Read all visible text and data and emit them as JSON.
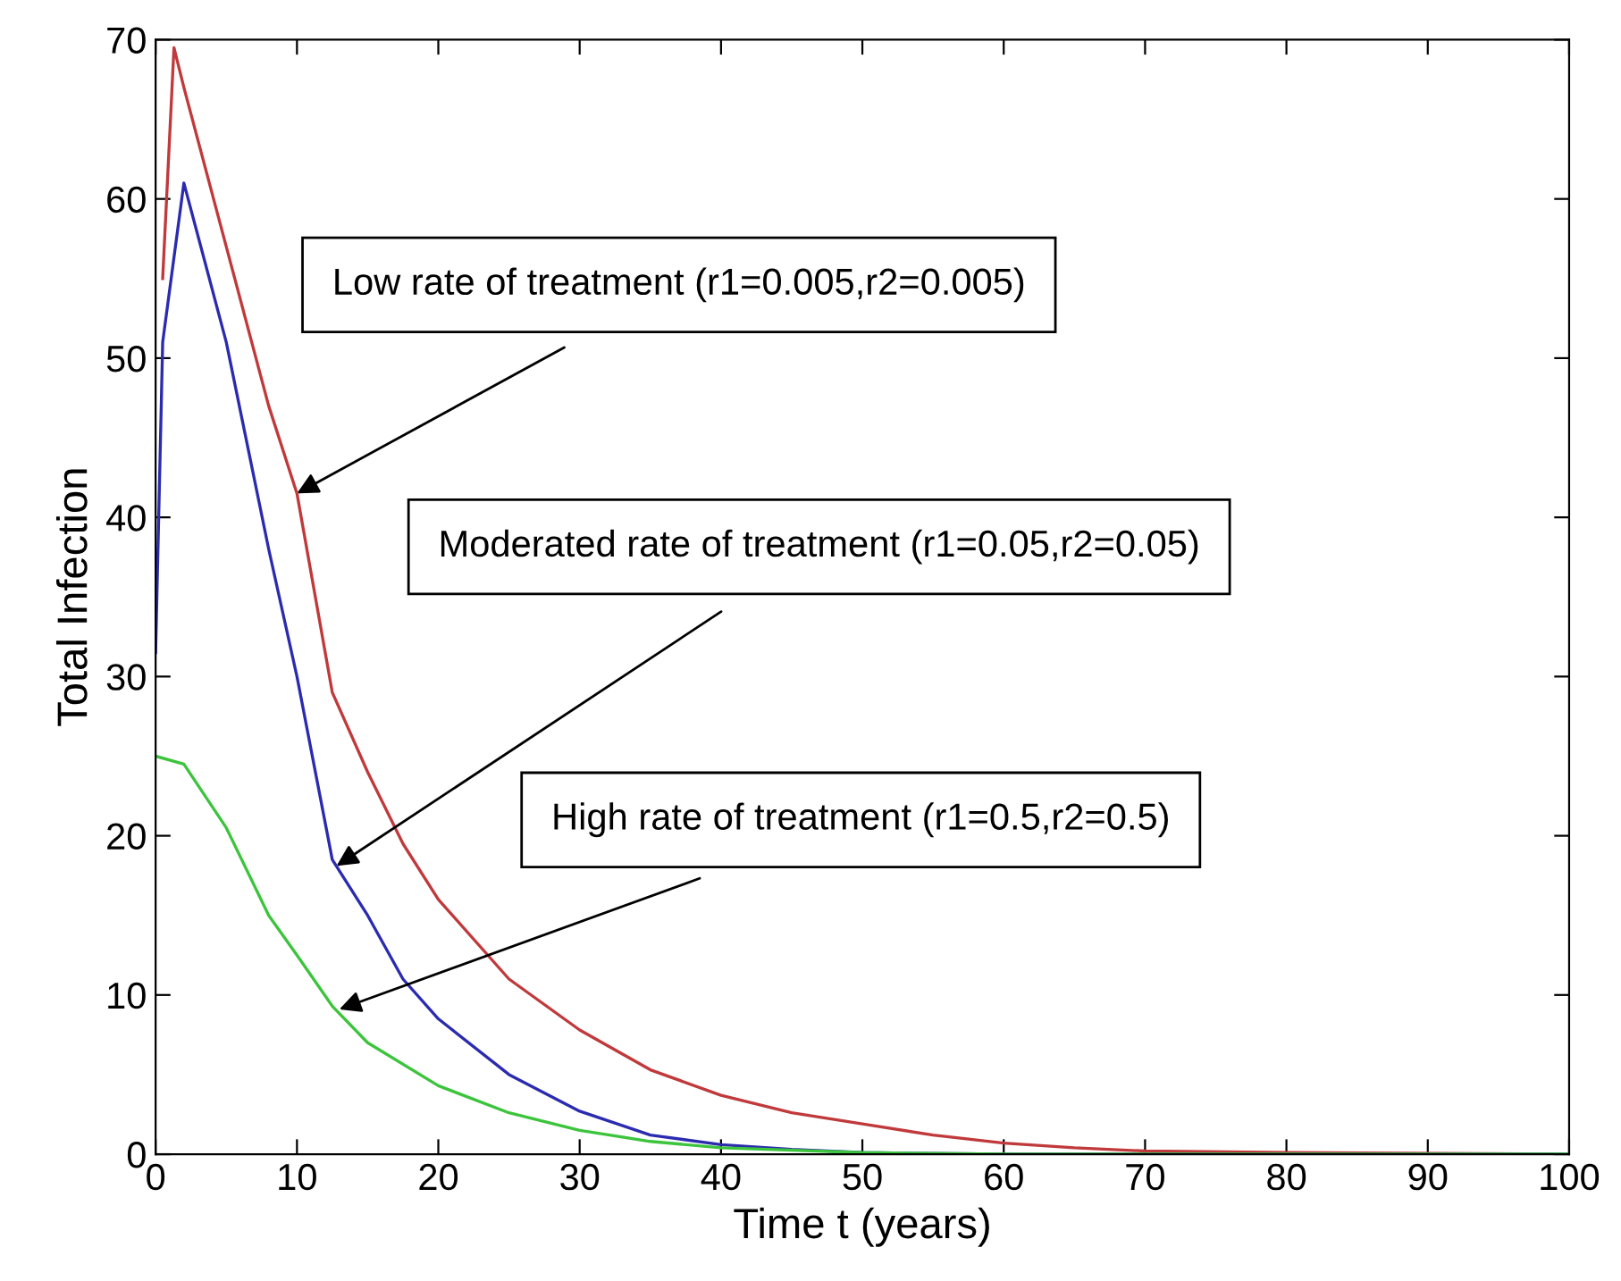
{
  "chart_data": {
    "type": "line",
    "xlabel": "Time t (years)",
    "ylabel": "Total Infection",
    "xlim": [
      0,
      100
    ],
    "ylim": [
      0,
      70
    ],
    "xticks": [
      0,
      10,
      20,
      30,
      40,
      50,
      60,
      70,
      80,
      90,
      100
    ],
    "yticks": [
      0,
      10,
      20,
      30,
      40,
      50,
      60,
      70
    ],
    "grid": false,
    "legend": false,
    "marker": "none",
    "line_style": "solid",
    "series": [
      {
        "color": "#c0393b",
        "x": [
          0.5,
          1.3,
          2,
          5,
          8,
          10,
          12.5,
          15,
          17.5,
          20,
          25,
          30,
          35,
          40,
          45,
          50,
          55,
          60,
          65,
          70,
          80,
          100
        ],
        "values": [
          55,
          69.5,
          67,
          57,
          47,
          41.5,
          29,
          24,
          19.5,
          16,
          11,
          7.8,
          5.3,
          3.7,
          2.6,
          1.9,
          1.2,
          0.7,
          0.4,
          0.2,
          0.1,
          0
        ]
      },
      {
        "color": "#2b2bb0",
        "x": [
          0,
          0.5,
          2,
          5,
          8,
          10,
          12.5,
          15,
          17.5,
          20,
          25,
          30,
          35,
          40,
          45,
          50,
          60,
          100
        ],
        "values": [
          31.5,
          51,
          61,
          51,
          38,
          30,
          18.5,
          15,
          11,
          8.5,
          5,
          2.7,
          1.2,
          0.6,
          0.3,
          0.1,
          0,
          0
        ]
      },
      {
        "color": "#3cc43c",
        "x": [
          0,
          2,
          5,
          8,
          10,
          12.5,
          15,
          20,
          25,
          30,
          35,
          40,
          50,
          60,
          100
        ],
        "values": [
          25,
          24.5,
          20.5,
          15,
          12.5,
          9.3,
          7,
          4.3,
          2.6,
          1.5,
          0.8,
          0.4,
          0.1,
          0,
          0
        ]
      }
    ],
    "annotations": [
      {
        "text": "Low rate of treatment (r1=0.005,r2=0.005)",
        "x": 10,
        "y": 41.5
      },
      {
        "text": "Moderated rate of treatment (r1=0.05,r2=0.05)",
        "x": 12.8,
        "y": 18.1
      },
      {
        "text": "High rate of treatment (r1=0.5,r2=0.5)",
        "x": 13,
        "y": 9.1
      }
    ]
  }
}
